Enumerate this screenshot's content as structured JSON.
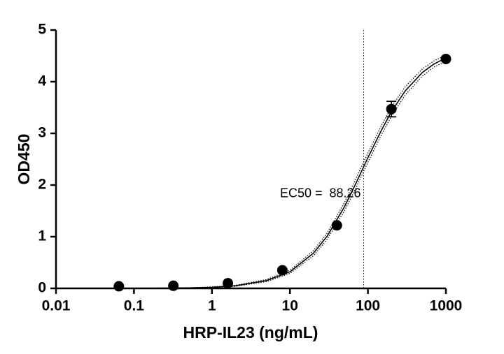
{
  "chart_data": {
    "type": "scatter",
    "xlabel": "HRP-IL23 (ng/mL)",
    "ylabel": "OD450",
    "x_scale": "log",
    "xlim": [
      0.01,
      1000
    ],
    "ylim": [
      0,
      5
    ],
    "xticks": [
      0.01,
      0.1,
      1,
      10,
      100,
      1000
    ],
    "yticks": [
      0,
      1,
      2,
      3,
      4,
      5
    ],
    "series": [
      {
        "color": "#000000",
        "x": [
          0.064,
          0.32,
          1.6,
          8,
          40,
          200,
          1000
        ],
        "values": [
          0.04,
          0.05,
          0.1,
          0.35,
          1.22,
          3.47,
          4.44
        ],
        "errors": [
          null,
          null,
          null,
          null,
          null,
          0.15,
          null
        ]
      }
    ],
    "fit": {
      "color": "#000000",
      "x": [
        0.064,
        0.1,
        0.5,
        1,
        2,
        5,
        10,
        20,
        30,
        50,
        70,
        100,
        150,
        200,
        300,
        500,
        700,
        1000
      ],
      "values": [
        0,
        0,
        0.01,
        0.02,
        0.05,
        0.15,
        0.32,
        0.68,
        1.01,
        1.58,
        2.03,
        2.53,
        3.07,
        3.42,
        3.82,
        4.18,
        4.34,
        4.46
      ],
      "upper": [
        0,
        0,
        0.01,
        0.03,
        0.06,
        0.17,
        0.35,
        0.73,
        1.07,
        1.66,
        2.12,
        2.62,
        3.16,
        3.51,
        3.9,
        4.25,
        4.4,
        4.52
      ],
      "lower": [
        0,
        0,
        0.01,
        0.01,
        0.04,
        0.13,
        0.29,
        0.63,
        0.95,
        1.5,
        1.94,
        2.44,
        2.98,
        3.33,
        3.74,
        4.11,
        4.28,
        4.4
      ]
    },
    "ec50_x": 88.26,
    "annotation": "EC50 =  88.26"
  }
}
